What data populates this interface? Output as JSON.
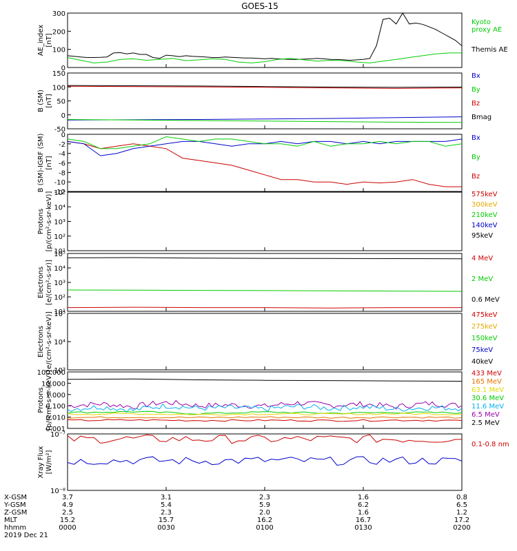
{
  "title": "GOES-15",
  "chart_data": [
    {
      "type": "line",
      "ylabel": "AE_index\n[nT]",
      "ylim": [
        0,
        300
      ],
      "yticks": [
        "0",
        "100",
        "200",
        "300"
      ],
      "legend": [
        {
          "text": "Kyoto\nproxy AE",
          "color": "#00cc00"
        },
        {
          "text": "Themis AE",
          "color": "#000000"
        }
      ],
      "series": [
        {
          "name": "Themis AE",
          "color": "#000000",
          "x": [
            0,
            2,
            4,
            6,
            8,
            10,
            12,
            14,
            16,
            18,
            20,
            22,
            24,
            26,
            28,
            30,
            32,
            34,
            36,
            38,
            40,
            42,
            44,
            46,
            48,
            50,
            52,
            54,
            56,
            58,
            60,
            62,
            64,
            66,
            68,
            70,
            72,
            74,
            76,
            78,
            80,
            82,
            84,
            86,
            88,
            90,
            92,
            94,
            96,
            98,
            100,
            102,
            104,
            106,
            108,
            110,
            112,
            114,
            116,
            118,
            120
          ],
          "y": [
            65,
            62,
            58,
            55,
            55,
            56,
            58,
            80,
            82,
            75,
            80,
            72,
            72,
            55,
            50,
            68,
            65,
            60,
            65,
            62,
            60,
            58,
            55,
            55,
            58,
            56,
            54,
            52,
            52,
            50,
            48,
            50,
            48,
            46,
            44,
            45,
            46,
            48,
            50,
            48,
            45,
            44,
            42,
            40,
            42,
            45,
            50,
            120,
            265,
            272,
            240,
            300,
            240,
            245,
            238,
            225,
            210,
            190,
            170,
            150,
            120
          ]
        },
        {
          "name": "Kyoto proxy AE",
          "color": "#00cc00",
          "x": [
            0,
            4,
            8,
            12,
            16,
            20,
            24,
            28,
            32,
            36,
            40,
            44,
            48,
            52,
            56,
            60,
            64,
            68,
            72,
            76,
            80,
            84,
            88,
            92,
            96,
            100,
            104,
            108,
            112,
            116,
            120
          ],
          "y": [
            55,
            40,
            25,
            30,
            45,
            48,
            40,
            45,
            50,
            38,
            42,
            48,
            45,
            30,
            25,
            32,
            45,
            50,
            42,
            35,
            40,
            38,
            30,
            25,
            35,
            45,
            55,
            65,
            75,
            80,
            80
          ]
        }
      ]
    },
    {
      "type": "line",
      "ylabel": "B (SM)\n[nT]",
      "ylim": [
        -60,
        150
      ],
      "yticks": [
        "-50",
        "0",
        "50",
        "100",
        "150"
      ],
      "legend": [
        {
          "text": "Bx",
          "color": "#0000cc"
        },
        {
          "text": "By",
          "color": "#00cc00"
        },
        {
          "text": "Bz",
          "color": "#cc0000"
        },
        {
          "text": "Bmag",
          "color": "#000000"
        }
      ],
      "series": [
        {
          "name": "Bmag",
          "color": "#000000",
          "x": [
            0,
            20,
            40,
            60,
            80,
            100,
            120
          ],
          "y": [
            103,
            102,
            101,
            99,
            97,
            96,
            97
          ]
        },
        {
          "name": "Bz",
          "color": "#cc0000",
          "x": [
            0,
            20,
            40,
            60,
            80,
            100,
            120
          ],
          "y": [
            100,
            99,
            98,
            96,
            94,
            92,
            94
          ]
        },
        {
          "name": "Bx",
          "color": "#0000cc",
          "x": [
            0,
            20,
            40,
            60,
            80,
            100,
            120
          ],
          "y": [
            -27,
            -26,
            -25,
            -23,
            -21,
            -18,
            -15
          ]
        },
        {
          "name": "By",
          "color": "#00cc00",
          "x": [
            0,
            20,
            40,
            60,
            80,
            100,
            120
          ],
          "y": [
            -25,
            -27,
            -29,
            -31,
            -33,
            -35,
            -36
          ]
        }
      ]
    },
    {
      "type": "line",
      "ylabel": "B (SM)-IGRF (SM)\n[nT]",
      "ylim": [
        -12,
        0
      ],
      "yticks": [
        "-12",
        "-10",
        "-8",
        "-6",
        "-4",
        "-2",
        "0"
      ],
      "legend": [
        {
          "text": "Bx",
          "color": "#0000cc"
        },
        {
          "text": "By",
          "color": "#00cc00"
        },
        {
          "text": "Bz",
          "color": "#cc0000"
        }
      ],
      "series": [
        {
          "name": "Bz",
          "color": "#cc0000",
          "x": [
            0,
            5,
            10,
            15,
            20,
            25,
            30,
            35,
            40,
            45,
            50,
            55,
            60,
            65,
            70,
            75,
            80,
            85,
            90,
            95,
            100,
            105,
            110,
            115,
            120
          ],
          "y": [
            -1.5,
            -2,
            -3,
            -2.5,
            -2,
            -2.5,
            -3,
            -5,
            -5.5,
            -6,
            -6.5,
            -7.5,
            -8.5,
            -9.5,
            -9.5,
            -10,
            -10,
            -10.5,
            -10,
            -10.2,
            -10,
            -9.5,
            -10.5,
            -11,
            -11
          ]
        },
        {
          "name": "Bx",
          "color": "#0000cc",
          "x": [
            0,
            5,
            10,
            15,
            20,
            25,
            30,
            35,
            40,
            45,
            50,
            55,
            60,
            65,
            70,
            75,
            80,
            85,
            90,
            95,
            100,
            105,
            110,
            115,
            120
          ],
          "y": [
            -1.5,
            -2,
            -4.5,
            -4,
            -3,
            -2.5,
            -2,
            -1.5,
            -1.5,
            -2,
            -2.5,
            -2,
            -2,
            -1.5,
            -2,
            -1.5,
            -1.5,
            -2,
            -1.5,
            -2,
            -1.5,
            -1.5,
            -1.5,
            -1.5,
            -1
          ]
        },
        {
          "name": "By",
          "color": "#00cc00",
          "x": [
            0,
            5,
            10,
            15,
            20,
            25,
            30,
            35,
            40,
            45,
            50,
            55,
            60,
            65,
            70,
            75,
            80,
            85,
            90,
            95,
            100,
            105,
            110,
            115,
            120
          ],
          "y": [
            -1,
            -1.5,
            -3,
            -3,
            -2.5,
            -2,
            -0.5,
            -1,
            -1.5,
            -1,
            -1,
            -1.5,
            -2,
            -2,
            -2.5,
            -1.5,
            -2.5,
            -2,
            -2,
            -1.5,
            -2,
            -1.5,
            -1.5,
            -2.5,
            -2
          ]
        }
      ]
    },
    {
      "type": "line",
      "scale": "log",
      "ylabel": "Protons\n[p/(cm²-s-sr-keV)]",
      "ylim": [
        10,
        100000
      ],
      "yticks": [
        "10¹",
        "10²",
        "10³",
        "10⁴",
        "10⁵"
      ],
      "legend": [
        {
          "text": "575keV",
          "color": "#cc0000"
        },
        {
          "text": "300keV",
          "color": "#e6a800"
        },
        {
          "text": "210keV",
          "color": "#00cc00"
        },
        {
          "text": "140keV",
          "color": "#0000cc"
        },
        {
          "text": "95keV",
          "color": "#000000"
        }
      ],
      "series": []
    },
    {
      "type": "line",
      "scale": "log",
      "ylabel": "Electrons\n[e/(cm²-s-sr)]",
      "ylim": [
        10,
        100000
      ],
      "yticks": [
        "10¹",
        "10²",
        "10³",
        "10⁴",
        "10⁵"
      ],
      "legend": [
        {
          "text": "4 MeV",
          "color": "#cc0000"
        },
        {
          "text": "2 MeV",
          "color": "#00cc00"
        },
        {
          "text": "0.6 MeV",
          "color": "#000000"
        }
      ],
      "series": [
        {
          "name": "0.6 MeV",
          "color": "#000000",
          "x": [
            0,
            20,
            40,
            60,
            80,
            100,
            120
          ],
          "y": [
            50000,
            52000,
            48000,
            46000,
            45000,
            44000,
            43000
          ]
        },
        {
          "name": "2 MeV",
          "color": "#00cc00",
          "x": [
            0,
            20,
            40,
            60,
            80,
            100,
            120
          ],
          "y": [
            300,
            290,
            280,
            270,
            260,
            250,
            240
          ]
        },
        {
          "name": "4 MeV",
          "color": "#cc0000",
          "x": [
            0,
            20,
            40,
            60,
            80,
            100,
            120
          ],
          "y": [
            18,
            19,
            18,
            18,
            17,
            18,
            18
          ]
        }
      ]
    },
    {
      "type": "line",
      "scale": "log",
      "ylabel": "Electrons\n[e/(cm²-s-sr-keV)]",
      "ylim": [
        1000,
        100000
      ],
      "yticks": [
        "10³",
        "10⁴",
        "10⁵"
      ],
      "legend": [
        {
          "text": "475keV",
          "color": "#cc0000"
        },
        {
          "text": "275keV",
          "color": "#e6a800"
        },
        {
          "text": "150keV",
          "color": "#00cc00"
        },
        {
          "text": "75keV",
          "color": "#0000cc"
        },
        {
          "text": "40keV",
          "color": "#000000"
        }
      ],
      "series": []
    },
    {
      "type": "line",
      "scale": "log",
      "ylabel": "Protons\n[p/(cm²-s-sr-keV)]",
      "ylim": [
        0.001,
        100
      ],
      "yticks": [
        "0.001",
        "0.010",
        "0.100",
        "1.000",
        "10.000",
        "100.000"
      ],
      "legend": [
        {
          "text": "433 MeV",
          "color": "#cc0000"
        },
        {
          "text": "165 MeV",
          "color": "#e67300"
        },
        {
          "text": "63.1 MeV",
          "color": "#e6d600"
        },
        {
          "text": "30.6 MeV",
          "color": "#00cc00"
        },
        {
          "text": "11.6 MeV",
          "color": "#00b0f0"
        },
        {
          "text": "6.5 MeV",
          "color": "#9900aa"
        },
        {
          "text": "2.5 MeV",
          "color": "#000000"
        }
      ],
      "series": [
        {
          "name": "2.5 MeV",
          "color": "#000000",
          "x": [
            0,
            20,
            40,
            60,
            80,
            100,
            120
          ],
          "y": [
            22,
            24,
            20,
            18,
            17,
            16,
            15
          ]
        },
        {
          "name": "6.5 MeV",
          "color": "#9900aa",
          "x": [
            0,
            10,
            20,
            30,
            40,
            50,
            60,
            70,
            80,
            90,
            100,
            110,
            120
          ],
          "y": [
            0.1,
            0.15,
            0.08,
            0.2,
            0.1,
            0.12,
            0.09,
            0.18,
            0.11,
            0.14,
            0.08,
            0.16,
            0.1
          ],
          "noisy": true
        },
        {
          "name": "11.6 MeV",
          "color": "#00b0f0",
          "x": [
            0,
            10,
            20,
            30,
            40,
            50,
            60,
            70,
            80,
            90,
            100,
            110,
            120
          ],
          "y": [
            0.05,
            0.08,
            0.04,
            0.1,
            0.06,
            0.07,
            0.05,
            0.09,
            0.06,
            0.08,
            0.05,
            0.07,
            0.06
          ],
          "noisy": true
        },
        {
          "name": "30.6 MeV",
          "color": "#00cc00",
          "x": [
            0,
            20,
            40,
            60,
            80,
            100,
            120
          ],
          "y": [
            0.025,
            0.03,
            0.02,
            0.028,
            0.022,
            0.026,
            0.024
          ],
          "noisy": true
        },
        {
          "name": "63.1 MeV",
          "color": "#e6d600",
          "x": [
            0,
            20,
            40,
            60,
            80,
            100,
            120
          ],
          "y": [
            0.018,
            0.02,
            0.017,
            0.019,
            0.018,
            0.02,
            0.018
          ],
          "noisy": true
        },
        {
          "name": "165 MeV",
          "color": "#e67300",
          "x": [
            0,
            20,
            40,
            60,
            80,
            100,
            120
          ],
          "y": [
            0.009,
            0.01,
            0.009,
            0.01,
            0.009,
            0.01,
            0.009
          ],
          "noisy": true
        },
        {
          "name": "433 MeV",
          "color": "#cc0000",
          "x": [
            0,
            20,
            40,
            60,
            80,
            100,
            120
          ],
          "y": [
            0.005,
            0.0055,
            0.005,
            0.0052,
            0.005,
            0.0053,
            0.005
          ],
          "noisy": true
        }
      ]
    },
    {
      "type": "line",
      "scale": "log",
      "ylabel": "Xray Flux\n[W/m²]",
      "ylim": [
        1e-08,
        1e-07
      ],
      "yticks": [
        "10⁻⁸",
        "10⁻⁷"
      ],
      "legend": [
        {
          "text": "0.1-0.8 nm",
          "color": "#cc0000"
        },
        {
          "text": "0.05-0.4 nm",
          "color": "#0000cc"
        }
      ],
      "series": [
        {
          "name": "0.1-0.8 nm",
          "color": "#cc0000",
          "x": [
            0,
            20,
            40,
            60,
            80,
            100,
            120
          ],
          "y": [
            8e-08,
            8.2e-08,
            8.1e-08,
            8e-08,
            8.2e-08,
            8.1e-08,
            8e-08
          ],
          "noisy": true
        },
        {
          "name": "0.05-0.4 nm",
          "color": "#0000cc",
          "x": [
            0,
            20,
            40,
            60,
            80,
            100,
            120
          ],
          "y": [
            3.3e-08,
            3.4e-08,
            3.3e-08,
            3.4e-08,
            3.3e-08,
            3.4e-08,
            3.3e-08
          ],
          "noisy": true
        }
      ]
    }
  ],
  "ephemeris": {
    "rows": [
      {
        "label": "X-GSM",
        "values": [
          "3.7",
          "3.1",
          "2.3",
          "1.6",
          "0.8"
        ]
      },
      {
        "label": "Y-GSM",
        "values": [
          "4.9",
          "5.4",
          "5.9",
          "6.2",
          "6.5"
        ]
      },
      {
        "label": "Z-GSM",
        "values": [
          "2.5",
          "2.3",
          "2.0",
          "1.6",
          "1.2"
        ]
      },
      {
        "label": "MLT",
        "values": [
          "15.2",
          "15.7",
          "16.2",
          "16.7",
          "17.2"
        ]
      },
      {
        "label": "hhmm",
        "values": [
          "0000",
          "0030",
          "0100",
          "0130",
          "0200"
        ]
      }
    ],
    "date": "2019 Dec 21"
  }
}
